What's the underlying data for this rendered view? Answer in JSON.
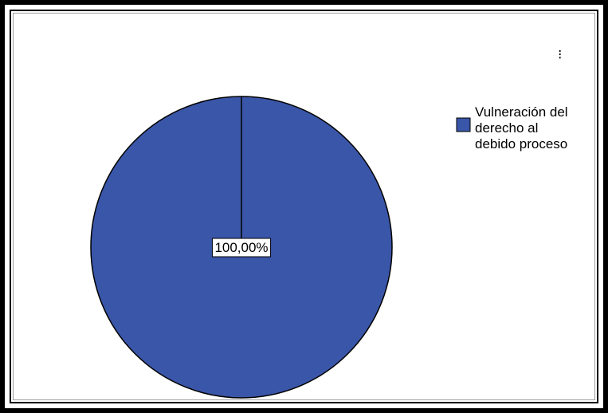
{
  "chart_data": {
    "type": "pie",
    "slices": [
      {
        "name": "Vulneración del derecho al debido proceso",
        "legend_lines": [
          "Vulneración del",
          "derecho al",
          "debido proceso"
        ],
        "value": 100.0,
        "label": "100,00%",
        "color": "#3a56a8"
      }
    ],
    "legend_marker_text": "⁝"
  }
}
